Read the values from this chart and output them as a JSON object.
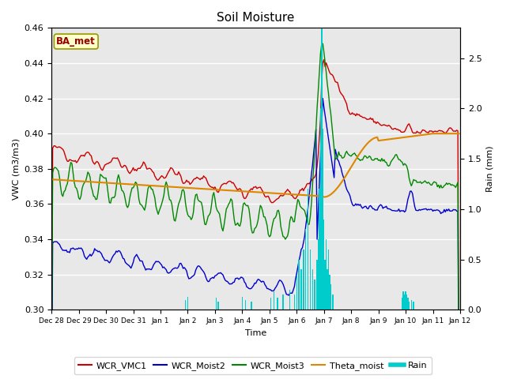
{
  "title": "Soil Moisture",
  "xlabel": "Time",
  "ylabel_left": "VWC (m3/m3)",
  "ylabel_right": "Rain (mm)",
  "ylim_left": [
    0.3,
    0.46
  ],
  "ylim_right": [
    0.0,
    2.8
  ],
  "plot_bg_color": "#e8e8e8",
  "station_label": "BA_met",
  "line_colors": {
    "WCR_VMC1": "#cc0000",
    "WCR_Moist2": "#0000cc",
    "WCR_Moist3": "#008800",
    "Theta_moist": "#dd8800",
    "Rain": "#00cccc"
  },
  "tick_labels": [
    "Dec 28",
    "Dec 29",
    "Dec 30",
    "Dec 31",
    "Jan 1",
    "Jan 2",
    "Jan 3",
    "Jan 4",
    "Jan 5",
    "Jan 6",
    "Jan 7",
    "Jan 8",
    "Jan 9",
    "Jan 10",
    "Jan 11",
    "Jan 12"
  ],
  "figsize": [
    6.4,
    4.8
  ],
  "dpi": 100
}
